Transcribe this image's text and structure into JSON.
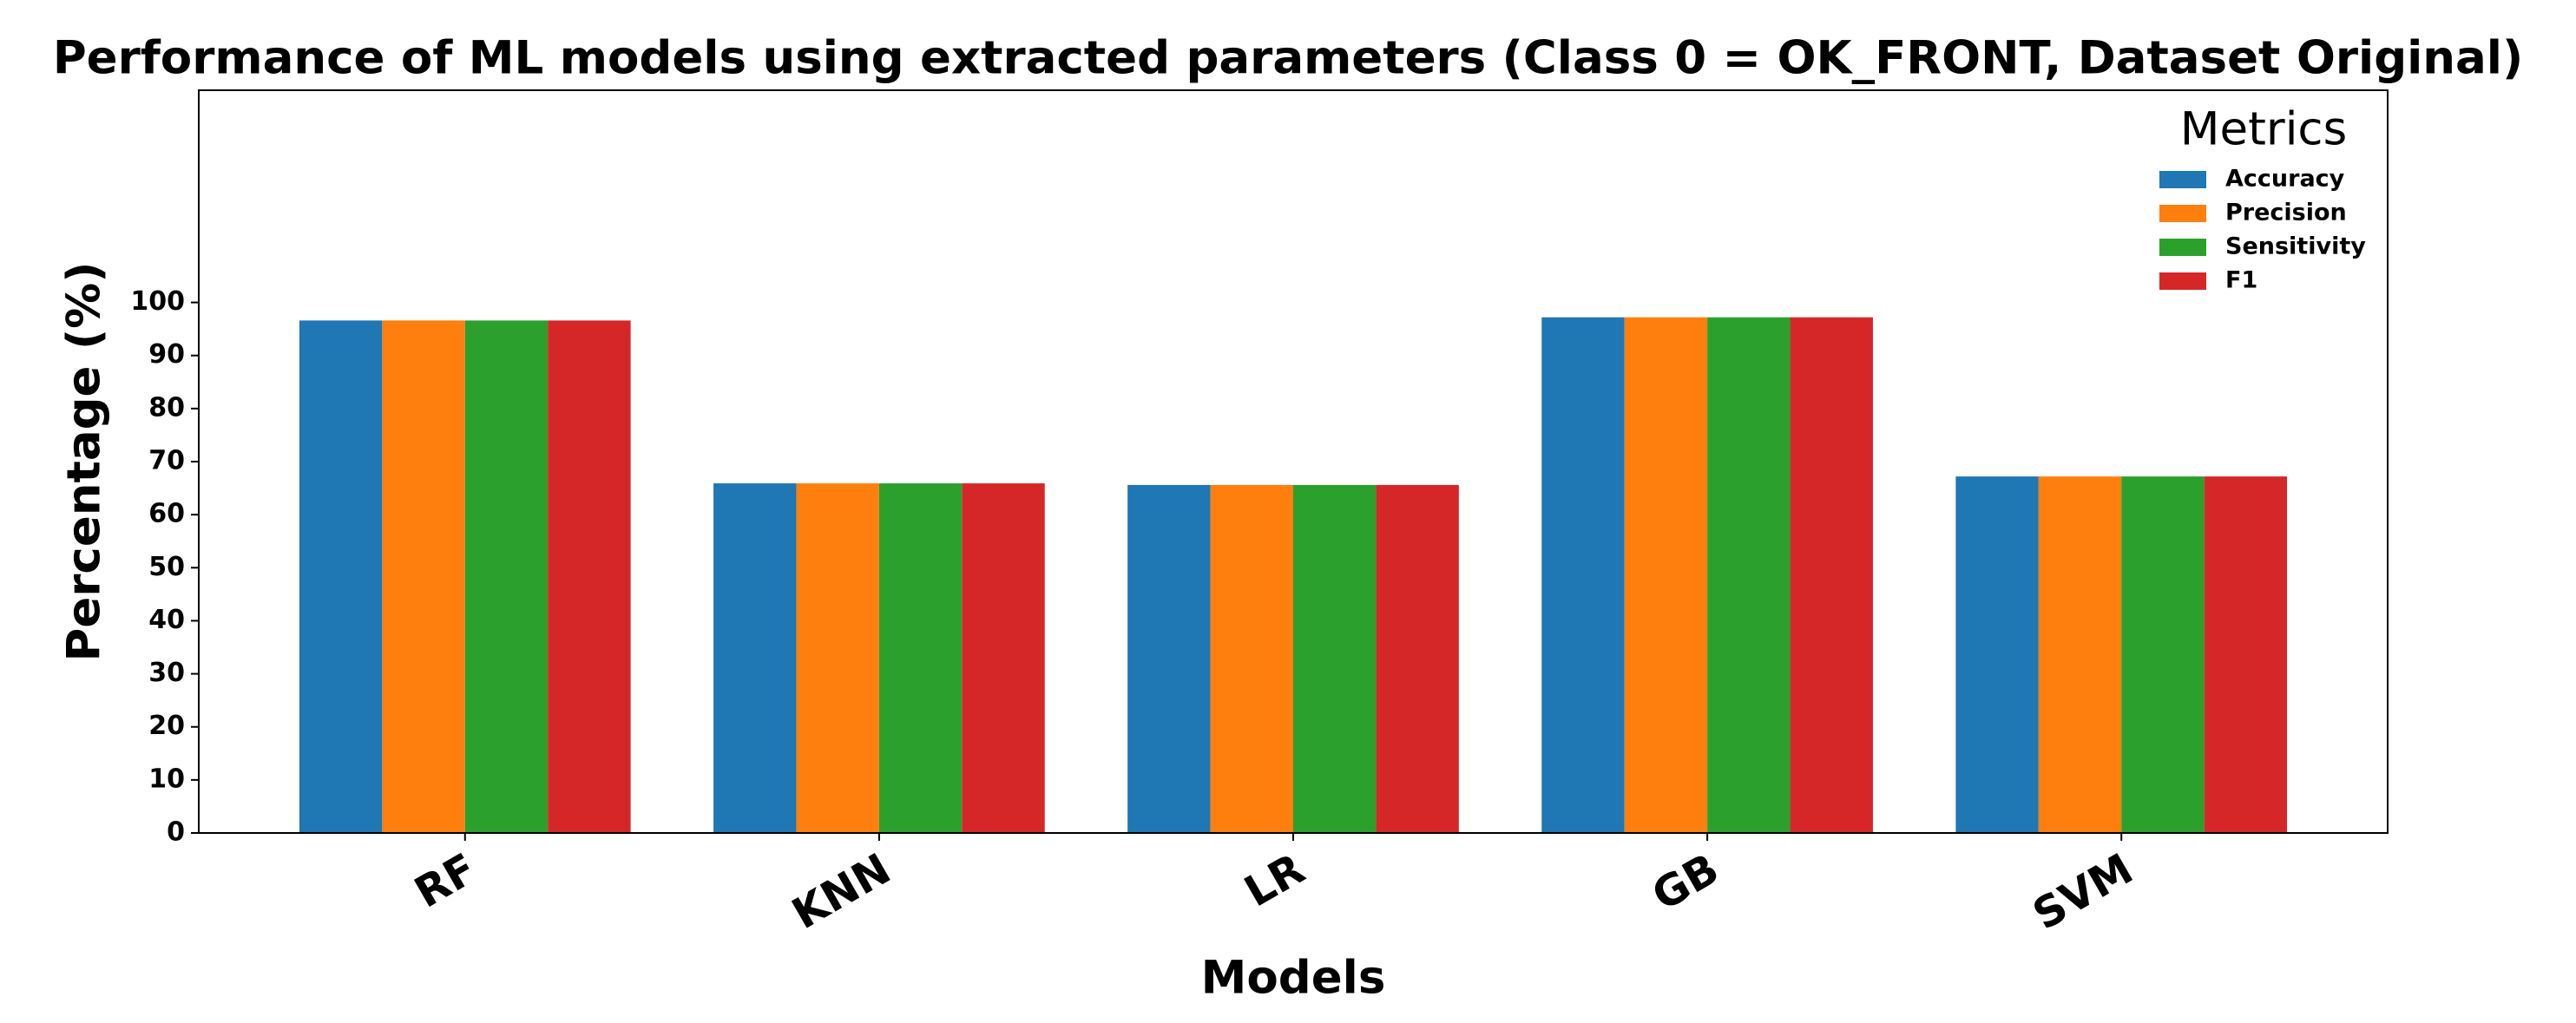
{
  "chart_data": {
    "type": "bar",
    "title": "Performance of ML models using extracted parameters (Class 0 = OK_FRONT, Dataset Original)",
    "x_label": "Models",
    "y_label": "Percentage (%)",
    "categories": [
      "RF",
      "KNN",
      "LR",
      "GB",
      "SVM"
    ],
    "series": [
      {
        "name": "Accuracy",
        "color": "#1f77b4",
        "values": [
          96.6,
          65.9,
          65.6,
          97.2,
          67.2
        ]
      },
      {
        "name": "Precision",
        "color": "#ff7f0e",
        "values": [
          96.6,
          65.9,
          65.6,
          97.2,
          67.2
        ]
      },
      {
        "name": "Sensitivity",
        "color": "#2ca02c",
        "values": [
          96.6,
          65.9,
          65.6,
          97.2,
          67.2
        ]
      },
      {
        "name": "F1",
        "color": "#d62728",
        "values": [
          96.6,
          65.9,
          65.6,
          97.2,
          67.2
        ]
      }
    ],
    "legend_title": "Metrics",
    "legend_position": "upper right",
    "ylim": [
      0,
      140
    ],
    "yticks": [
      0,
      10,
      20,
      30,
      40,
      50,
      60,
      70,
      80,
      90,
      100
    ]
  }
}
